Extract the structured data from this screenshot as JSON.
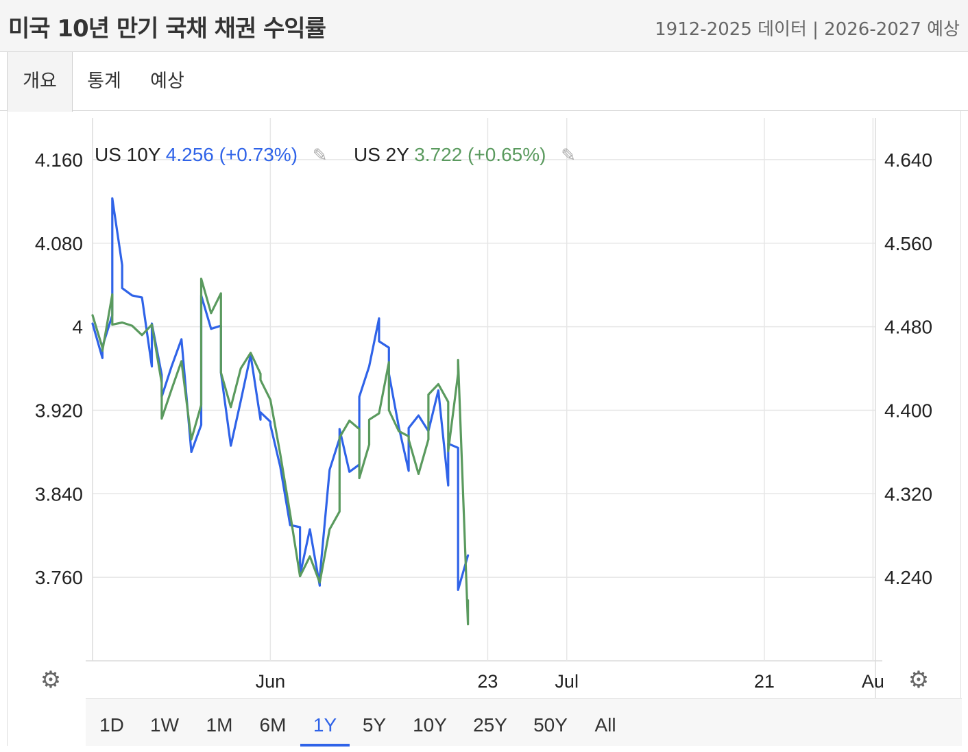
{
  "header": {
    "title": "미국 10년 만기 국채 채권 수익률",
    "subtitle": "1912-2025 데이터 | 2026-2027 예상"
  },
  "tabs": [
    {
      "label": "개요",
      "active": true
    },
    {
      "label": "통계",
      "active": false
    },
    {
      "label": "예상",
      "active": false
    }
  ],
  "legend": [
    {
      "name": "US 10Y",
      "value": "4.256 (+0.73%)",
      "color": "#2f63e8"
    },
    {
      "name": "US 2Y",
      "value": "3.722 (+0.65%)",
      "color": "#5a9a5e"
    }
  ],
  "icons": {
    "edit": "pencil-icon",
    "settings": "gear-icon"
  },
  "range_buttons": [
    {
      "label": "1D",
      "active": false
    },
    {
      "label": "1W",
      "active": false
    },
    {
      "label": "1M",
      "active": false
    },
    {
      "label": "6M",
      "active": false
    },
    {
      "label": "1Y",
      "active": true
    },
    {
      "label": "5Y",
      "active": false
    },
    {
      "label": "10Y",
      "active": false
    },
    {
      "label": "25Y",
      "active": false
    },
    {
      "label": "50Y",
      "active": false
    },
    {
      "label": "All",
      "active": false
    }
  ],
  "chart_data": {
    "type": "line",
    "grid": true,
    "x_tick_labels": [
      "Jun",
      "23",
      "Jul",
      "21",
      "Au"
    ],
    "x_ticks": [
      "2025-06-01",
      "2025-06-23",
      "2025-07-01",
      "2025-07-21",
      "2025-08-01"
    ],
    "left_axis": {
      "ticks": [
        "4.160",
        "4.080",
        "4",
        "3.920",
        "3.840",
        "3.760"
      ],
      "range": [
        3.68,
        4.2
      ]
    },
    "right_axis": {
      "ticks": [
        "4.640",
        "4.560",
        "4.480",
        "4.400",
        "4.320",
        "4.240"
      ],
      "range": [
        4.16,
        4.68
      ]
    },
    "series": [
      {
        "name": "US 10Y",
        "axis": "left",
        "color": "#2f63e8",
        "points": [
          [
            "2025-05-14",
            4.003
          ],
          [
            "2025-05-15",
            3.97
          ],
          [
            "2025-05-15",
            3.981
          ],
          [
            "2025-05-16",
            4.011
          ],
          [
            "2025-05-16",
            4.123
          ],
          [
            "2025-05-17",
            4.059
          ],
          [
            "2025-05-17",
            4.037
          ],
          [
            "2025-05-18",
            4.03
          ],
          [
            "2025-05-19",
            4.028
          ],
          [
            "2025-05-20",
            3.962
          ],
          [
            "2025-05-20",
            4.003
          ],
          [
            "2025-05-21",
            3.954
          ],
          [
            "2025-05-21",
            3.933
          ],
          [
            "2025-05-22",
            3.962
          ],
          [
            "2025-05-23",
            3.988
          ],
          [
            "2025-05-24",
            3.88
          ],
          [
            "2025-05-25",
            3.906
          ],
          [
            "2025-05-25",
            4.03
          ],
          [
            "2025-05-26",
            3.998
          ],
          [
            "2025-05-27",
            4.001
          ],
          [
            "2025-05-27",
            3.956
          ],
          [
            "2025-05-28",
            3.886
          ],
          [
            "2025-05-29",
            3.929
          ],
          [
            "2025-05-30",
            3.973
          ],
          [
            "2025-05-31",
            3.911
          ],
          [
            "2025-05-31",
            3.918
          ],
          [
            "2025-06-01",
            3.909
          ],
          [
            "2025-06-01",
            3.906
          ],
          [
            "2025-06-02",
            3.866
          ],
          [
            "2025-06-03",
            3.81
          ],
          [
            "2025-06-04",
            3.808
          ],
          [
            "2025-06-04",
            3.762
          ],
          [
            "2025-06-05",
            3.806
          ],
          [
            "2025-06-06",
            3.752
          ],
          [
            "2025-06-06",
            3.76
          ],
          [
            "2025-06-07",
            3.863
          ],
          [
            "2025-06-08",
            3.893
          ],
          [
            "2025-06-08",
            3.902
          ],
          [
            "2025-06-09",
            3.861
          ],
          [
            "2025-06-10",
            3.868
          ],
          [
            "2025-06-10",
            3.933
          ],
          [
            "2025-06-11",
            3.962
          ],
          [
            "2025-06-12",
            4.008
          ],
          [
            "2025-06-12",
            3.986
          ],
          [
            "2025-06-13",
            3.98
          ],
          [
            "2025-06-13",
            3.955
          ],
          [
            "2025-06-14",
            3.904
          ],
          [
            "2025-06-15",
            3.862
          ],
          [
            "2025-06-15",
            3.903
          ],
          [
            "2025-06-16",
            3.915
          ],
          [
            "2025-06-17",
            3.9
          ],
          [
            "2025-06-18",
            3.939
          ],
          [
            "2025-06-19",
            3.848
          ],
          [
            "2025-06-19",
            3.888
          ],
          [
            "2025-06-20",
            3.884
          ],
          [
            "2025-06-20",
            3.748
          ],
          [
            "2025-06-21",
            3.781
          ]
        ]
      },
      {
        "name": "US 2Y",
        "axis": "right",
        "color": "#5a9a5e",
        "points": [
          [
            "2025-05-14",
            4.491
          ],
          [
            "2025-05-15",
            4.46
          ],
          [
            "2025-05-15",
            4.457
          ],
          [
            "2025-05-16",
            4.511
          ],
          [
            "2025-05-16",
            4.482
          ],
          [
            "2025-05-17",
            4.484
          ],
          [
            "2025-05-18",
            4.481
          ],
          [
            "2025-05-19",
            4.472
          ],
          [
            "2025-05-20",
            4.482
          ],
          [
            "2025-05-21",
            4.426
          ],
          [
            "2025-05-21",
            4.392
          ],
          [
            "2025-05-22",
            4.42
          ],
          [
            "2025-05-23",
            4.447
          ],
          [
            "2025-05-24",
            4.372
          ],
          [
            "2025-05-25",
            4.405
          ],
          [
            "2025-05-25",
            4.526
          ],
          [
            "2025-05-26",
            4.493
          ],
          [
            "2025-05-27",
            4.512
          ],
          [
            "2025-05-27",
            4.436
          ],
          [
            "2025-05-28",
            4.403
          ],
          [
            "2025-05-29",
            4.44
          ],
          [
            "2025-05-30",
            4.455
          ],
          [
            "2025-05-31",
            4.435
          ],
          [
            "2025-05-31",
            4.429
          ],
          [
            "2025-06-01",
            4.41
          ],
          [
            "2025-06-02",
            4.358
          ],
          [
            "2025-06-03",
            4.301
          ],
          [
            "2025-06-04",
            4.241
          ],
          [
            "2025-06-05",
            4.26
          ],
          [
            "2025-06-06",
            4.235
          ],
          [
            "2025-06-07",
            4.286
          ],
          [
            "2025-06-08",
            4.303
          ],
          [
            "2025-06-08",
            4.374
          ],
          [
            "2025-06-09",
            4.39
          ],
          [
            "2025-06-10",
            4.382
          ],
          [
            "2025-06-10",
            4.335
          ],
          [
            "2025-06-11",
            4.367
          ],
          [
            "2025-06-11",
            4.391
          ],
          [
            "2025-06-12",
            4.397
          ],
          [
            "2025-06-13",
            4.446
          ],
          [
            "2025-06-13",
            4.4
          ],
          [
            "2025-06-14",
            4.38
          ],
          [
            "2025-06-15",
            4.375
          ],
          [
            "2025-06-15",
            4.372
          ],
          [
            "2025-06-16",
            4.339
          ],
          [
            "2025-06-17",
            4.372
          ],
          [
            "2025-06-17",
            4.415
          ],
          [
            "2025-06-18",
            4.425
          ],
          [
            "2025-06-19",
            4.408
          ],
          [
            "2025-06-19",
            4.361
          ],
          [
            "2025-06-20",
            4.435
          ],
          [
            "2025-06-20",
            4.448
          ],
          [
            "2025-06-21",
            4.195
          ],
          [
            "2025-06-21",
            4.218
          ]
        ]
      }
    ]
  }
}
